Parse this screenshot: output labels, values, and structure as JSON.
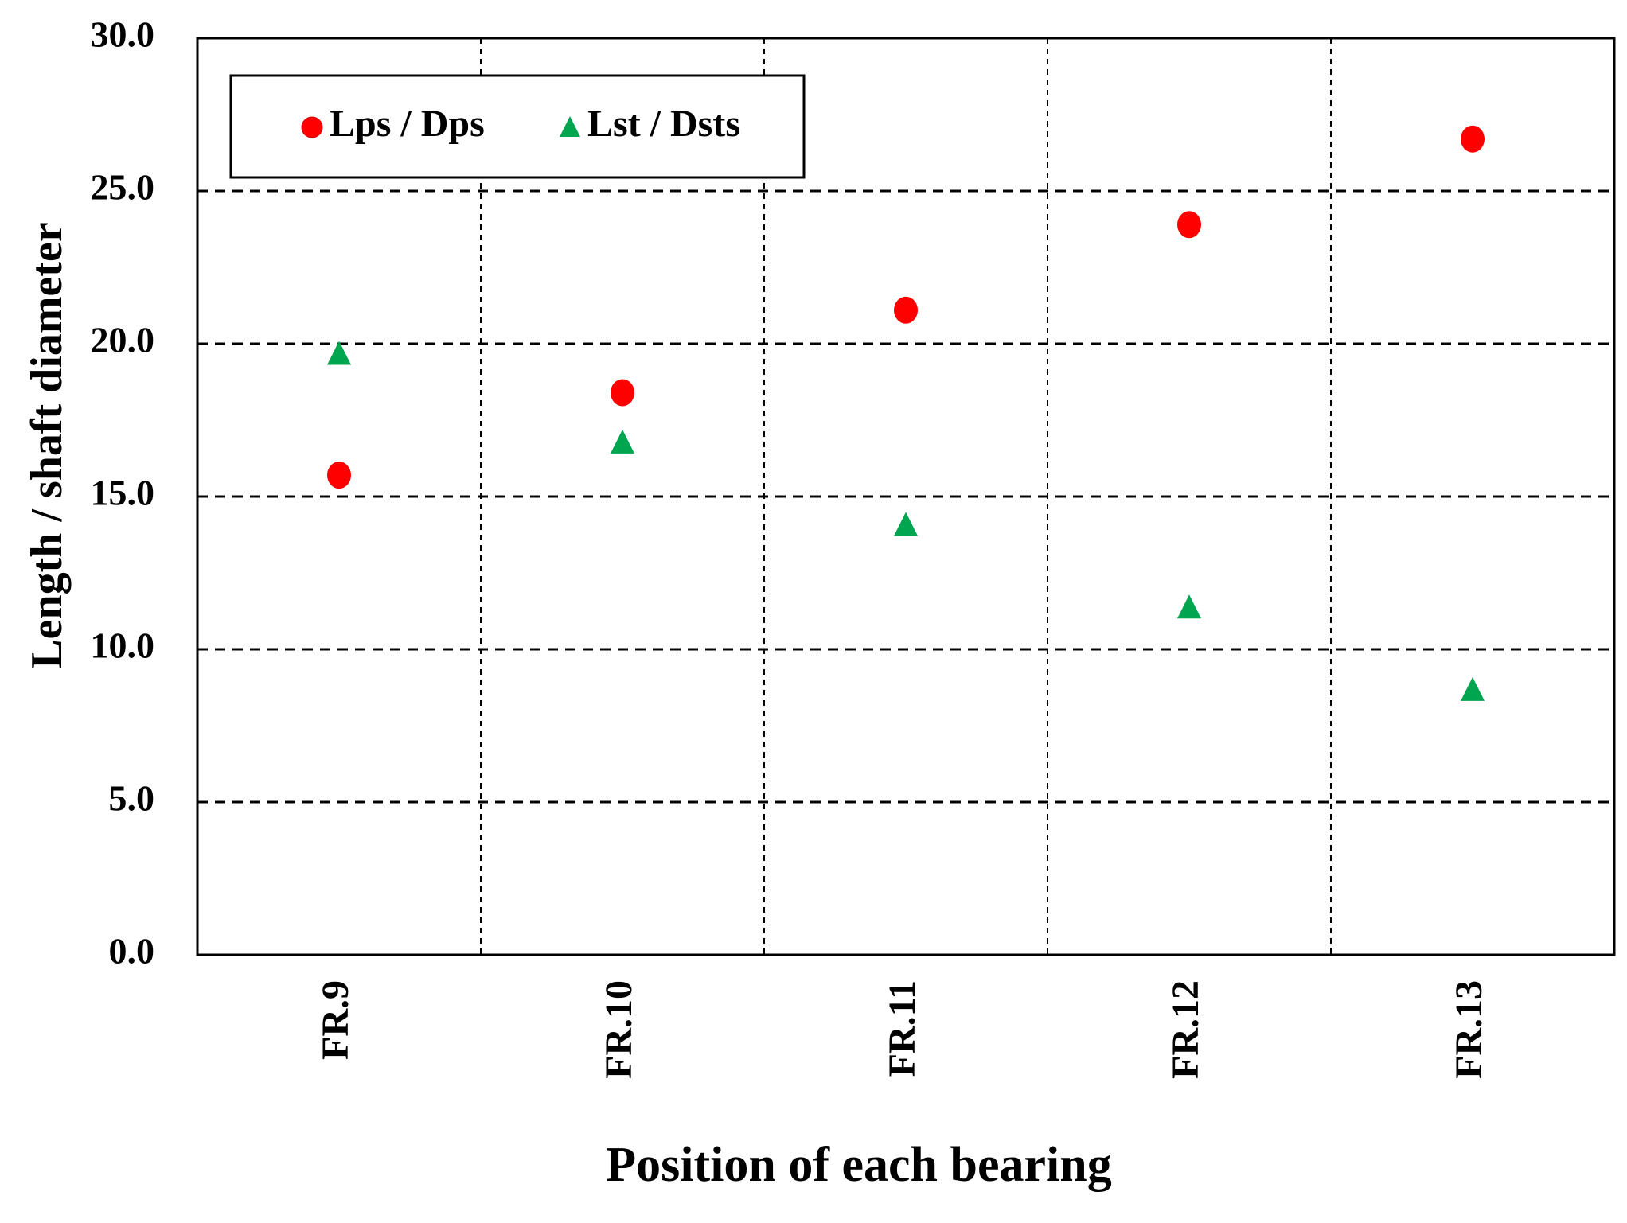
{
  "chart_data": {
    "type": "scatter",
    "title": "",
    "xlabel": "Position of each bearing",
    "ylabel": "Length / shaft diameter",
    "categories": [
      "FR.9",
      "FR.10",
      "FR.11",
      "FR.12",
      "FR.13"
    ],
    "y_ticks": [
      "0.0",
      "5.0",
      "10.0",
      "15.0",
      "20.0",
      "25.0",
      "30.0"
    ],
    "ylim": [
      0,
      30
    ],
    "grid": true,
    "legend_position": "top-left",
    "series": [
      {
        "name": "Lps / Dps",
        "marker": "circle",
        "color": "#ff0000",
        "values": [
          15.7,
          18.4,
          21.1,
          23.9,
          26.7
        ]
      },
      {
        "name": "Lst / Dsts",
        "marker": "triangle",
        "color": "#00a550",
        "values": [
          19.7,
          16.8,
          14.1,
          11.4,
          8.7
        ]
      }
    ]
  }
}
